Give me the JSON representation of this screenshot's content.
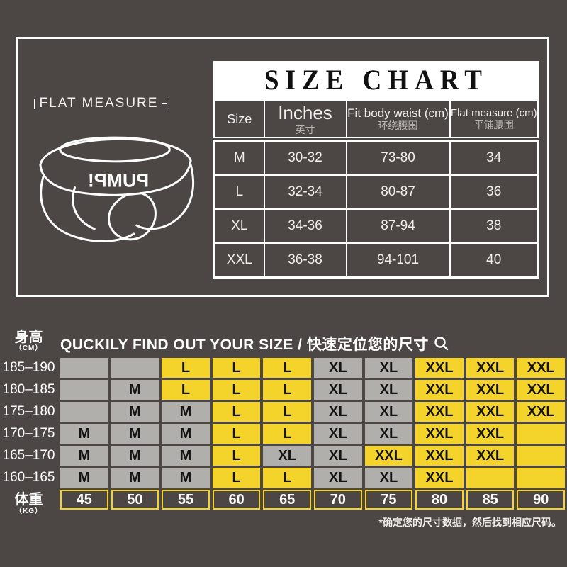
{
  "colors": {
    "background": "#4C4744",
    "yellow": "#F4D32A",
    "gray": "#B0AFAC",
    "white": "#FFFFFF",
    "cell_text": "#141414"
  },
  "top": {
    "flat_measure_label": "FLAT MEASURE",
    "brand": "PUMP!",
    "title": "SIZE CHART",
    "table": {
      "headers": {
        "size": {
          "en": "Size",
          "zh": ""
        },
        "inches": {
          "en": "Inches",
          "zh": "英寸"
        },
        "fit": {
          "en": "Fit body waist (cm)",
          "zh": "环绕腰围"
        },
        "flat": {
          "en": "Flat measure (cm)",
          "zh": "平铺腰围"
        }
      },
      "rows": [
        {
          "size": "M",
          "inches": "30-32",
          "fit": "73-80",
          "flat": "34"
        },
        {
          "size": "L",
          "inches": "32-34",
          "fit": "80-87",
          "flat": "36"
        },
        {
          "size": "XL",
          "inches": "34-36",
          "fit": "87-94",
          "flat": "38"
        },
        {
          "size": "XXL",
          "inches": "36-38",
          "fit": "94-101",
          "flat": "40"
        }
      ]
    }
  },
  "finder": {
    "height_label": "身高",
    "height_unit": "（CM）",
    "title": "QUCKILY FIND OUT YOUR SIZE / 快速定位您的尺寸",
    "magnifier_icon": "search-icon",
    "weight_label": "体重",
    "weight_unit": "（KG）",
    "weights": [
      "45",
      "50",
      "55",
      "60",
      "65",
      "70",
      "75",
      "80",
      "85",
      "90"
    ],
    "rows": [
      {
        "height": "185–190",
        "cells": [
          {
            "label": "",
            "color": "gray"
          },
          {
            "label": "",
            "color": "gray"
          },
          {
            "label": "L",
            "color": "yellow"
          },
          {
            "label": "L",
            "color": "yellow"
          },
          {
            "label": "L",
            "color": "yellow"
          },
          {
            "label": "XL",
            "color": "gray"
          },
          {
            "label": "XL",
            "color": "gray"
          },
          {
            "label": "XXL",
            "color": "yellow"
          },
          {
            "label": "XXL",
            "color": "yellow"
          },
          {
            "label": "XXL",
            "color": "yellow"
          }
        ]
      },
      {
        "height": "180–185",
        "cells": [
          {
            "label": "",
            "color": "gray"
          },
          {
            "label": "M",
            "color": "gray"
          },
          {
            "label": "L",
            "color": "yellow"
          },
          {
            "label": "L",
            "color": "yellow"
          },
          {
            "label": "L",
            "color": "yellow"
          },
          {
            "label": "XL",
            "color": "gray"
          },
          {
            "label": "XL",
            "color": "gray"
          },
          {
            "label": "XXL",
            "color": "yellow"
          },
          {
            "label": "XXL",
            "color": "yellow"
          },
          {
            "label": "XXL",
            "color": "yellow"
          }
        ]
      },
      {
        "height": "175–180",
        "cells": [
          {
            "label": "",
            "color": "gray"
          },
          {
            "label": "M",
            "color": "gray"
          },
          {
            "label": "M",
            "color": "gray"
          },
          {
            "label": "L",
            "color": "yellow"
          },
          {
            "label": "L",
            "color": "yellow"
          },
          {
            "label": "XL",
            "color": "gray"
          },
          {
            "label": "XL",
            "color": "gray"
          },
          {
            "label": "XXL",
            "color": "yellow"
          },
          {
            "label": "XXL",
            "color": "yellow"
          },
          {
            "label": "XXL",
            "color": "yellow"
          }
        ]
      },
      {
        "height": "170–175",
        "cells": [
          {
            "label": "M",
            "color": "gray"
          },
          {
            "label": "M",
            "color": "gray"
          },
          {
            "label": "M",
            "color": "gray"
          },
          {
            "label": "L",
            "color": "yellow"
          },
          {
            "label": "L",
            "color": "yellow"
          },
          {
            "label": "XL",
            "color": "gray"
          },
          {
            "label": "XL",
            "color": "gray"
          },
          {
            "label": "XXL",
            "color": "yellow"
          },
          {
            "label": "XXL",
            "color": "yellow"
          },
          {
            "label": "",
            "color": "yellow"
          }
        ]
      },
      {
        "height": "165–170",
        "cells": [
          {
            "label": "M",
            "color": "gray"
          },
          {
            "label": "M",
            "color": "gray"
          },
          {
            "label": "M",
            "color": "gray"
          },
          {
            "label": "L",
            "color": "yellow"
          },
          {
            "label": "XL",
            "color": "gray"
          },
          {
            "label": "XL",
            "color": "gray"
          },
          {
            "label": "XXL",
            "color": "yellow"
          },
          {
            "label": "XXL",
            "color": "yellow"
          },
          {
            "label": "XXL",
            "color": "yellow"
          },
          {
            "label": "",
            "color": "yellow"
          }
        ]
      },
      {
        "height": "160–165",
        "cells": [
          {
            "label": "M",
            "color": "gray"
          },
          {
            "label": "M",
            "color": "gray"
          },
          {
            "label": "M",
            "color": "gray"
          },
          {
            "label": "L",
            "color": "yellow"
          },
          {
            "label": "L",
            "color": "yellow"
          },
          {
            "label": "XL",
            "color": "gray"
          },
          {
            "label": "XL",
            "color": "gray"
          },
          {
            "label": "XXL",
            "color": "yellow"
          },
          {
            "label": "",
            "color": "yellow"
          },
          {
            "label": "",
            "color": "yellow"
          }
        ]
      }
    ],
    "footnote": "*确定您的尺寸数据，然后找到相应尺码。"
  },
  "chart_data": [
    {
      "type": "table",
      "title": "SIZE CHART",
      "columns": [
        "Size",
        "Inches 英寸",
        "Fit body waist (cm) 环绕腰围",
        "Flat measure (cm) 平铺腰围"
      ],
      "rows": [
        [
          "M",
          "30-32",
          "73-80",
          "34"
        ],
        [
          "L",
          "32-34",
          "80-87",
          "36"
        ],
        [
          "XL",
          "34-36",
          "87-94",
          "38"
        ],
        [
          "XXL",
          "36-38",
          "94-101",
          "40"
        ]
      ]
    },
    {
      "type": "table",
      "title": "QUCKILY FIND OUT YOUR SIZE / 快速定位您的尺寸",
      "xlabel": "体重（KG）",
      "ylabel": "身高（CM）",
      "columns": [
        45,
        50,
        55,
        60,
        65,
        70,
        75,
        80,
        85,
        90
      ],
      "row_labels": [
        "185-190",
        "180-185",
        "175-180",
        "170-175",
        "165-170",
        "160-165"
      ],
      "rows": [
        [
          "",
          "",
          "L",
          "L",
          "L",
          "XL",
          "XL",
          "XXL",
          "XXL",
          "XXL"
        ],
        [
          "",
          "M",
          "L",
          "L",
          "L",
          "XL",
          "XL",
          "XXL",
          "XXL",
          "XXL"
        ],
        [
          "",
          "M",
          "M",
          "L",
          "L",
          "XL",
          "XL",
          "XXL",
          "XXL",
          "XXL"
        ],
        [
          "M",
          "M",
          "M",
          "L",
          "L",
          "XL",
          "XL",
          "XXL",
          "XXL",
          ""
        ],
        [
          "M",
          "M",
          "M",
          "L",
          "XL",
          "XL",
          "XXL",
          "XXL",
          "XXL",
          ""
        ],
        [
          "M",
          "M",
          "M",
          "L",
          "L",
          "XL",
          "XL",
          "XXL",
          "",
          ""
        ]
      ]
    }
  ]
}
